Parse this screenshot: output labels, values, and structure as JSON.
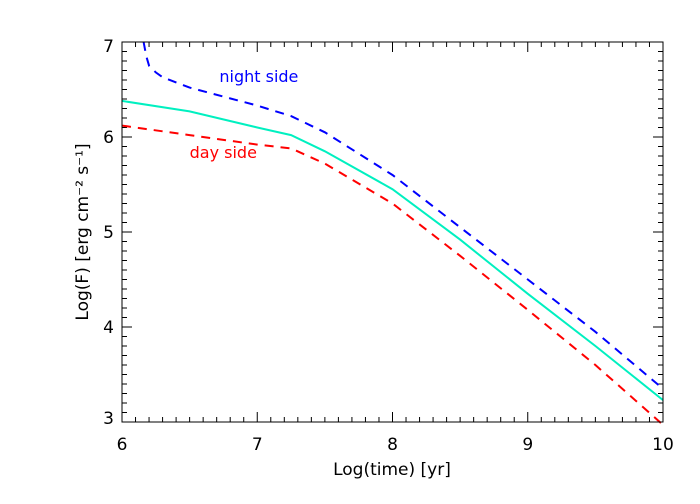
{
  "chart_data": {
    "type": "line",
    "title": "",
    "xlabel": "Log(time) [yr]",
    "ylabel": "Log(F) [erg cm⁻² s⁻¹]",
    "xlim": [
      6,
      10
    ],
    "ylim": [
      3,
      7
    ],
    "xticks": [
      "6",
      "7",
      "8",
      "9",
      "10"
    ],
    "yticks": [
      "3",
      "4",
      "5",
      "6",
      "7"
    ],
    "grid": false,
    "series": [
      {
        "name": "night side",
        "color": "#0000ff",
        "dash": "dashed",
        "x": [
          6.16,
          6.18,
          6.2,
          6.25,
          6.3,
          6.5,
          7.0,
          7.25,
          7.5,
          8.0,
          8.5,
          9.0,
          9.5,
          10.0
        ],
        "y": [
          7.0,
          6.85,
          6.75,
          6.68,
          6.63,
          6.52,
          6.33,
          6.22,
          6.05,
          5.6,
          5.05,
          4.5,
          3.95,
          3.35
        ]
      },
      {
        "color": "#00f0c0",
        "dash": "solid",
        "x": [
          6.0,
          6.5,
          7.0,
          7.25,
          7.5,
          8.0,
          8.5,
          9.0,
          9.5,
          10.0
        ],
        "y": [
          6.38,
          6.27,
          6.1,
          6.02,
          5.85,
          5.45,
          4.92,
          4.35,
          3.8,
          3.23
        ]
      },
      {
        "name": "day side",
        "color": "#ff0000",
        "dash": "dashed",
        "x": [
          6.0,
          6.5,
          7.0,
          7.25,
          7.5,
          8.0,
          8.5,
          9.0,
          9.5,
          10.0
        ],
        "y": [
          6.12,
          6.02,
          5.92,
          5.88,
          5.72,
          5.3,
          4.75,
          4.18,
          3.6,
          2.97
        ]
      }
    ],
    "annotations": [
      {
        "text": "night side",
        "x": 6.72,
        "y": 6.58,
        "color": "#0000ff"
      },
      {
        "text": "day side",
        "x": 6.5,
        "y": 5.78,
        "color": "#ff0000"
      }
    ]
  }
}
